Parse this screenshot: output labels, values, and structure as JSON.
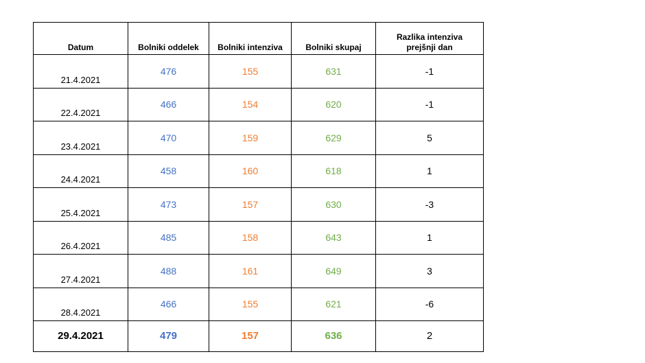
{
  "table": {
    "header": [
      "Datum",
      "Bolniki oddelek",
      "Bolniki intenziva",
      "Bolniki skupaj",
      "Razlika intenziva prejšnji dan"
    ],
    "rows": [
      [
        "21.4.2021",
        476,
        155,
        631,
        -1
      ],
      [
        "22.4.2021",
        466,
        154,
        620,
        -1
      ],
      [
        "23.4.2021",
        470,
        159,
        629,
        5
      ],
      [
        "24.4.2021",
        458,
        160,
        618,
        1
      ],
      [
        "25.4.2021",
        473,
        157,
        630,
        -3
      ],
      [
        "26.4.2021",
        485,
        158,
        643,
        1
      ],
      [
        "27.4.2021",
        488,
        161,
        649,
        3
      ],
      [
        "28.4.2021",
        466,
        155,
        621,
        -6
      ],
      [
        "29.4.2021",
        479,
        157,
        636,
        2
      ]
    ]
  }
}
